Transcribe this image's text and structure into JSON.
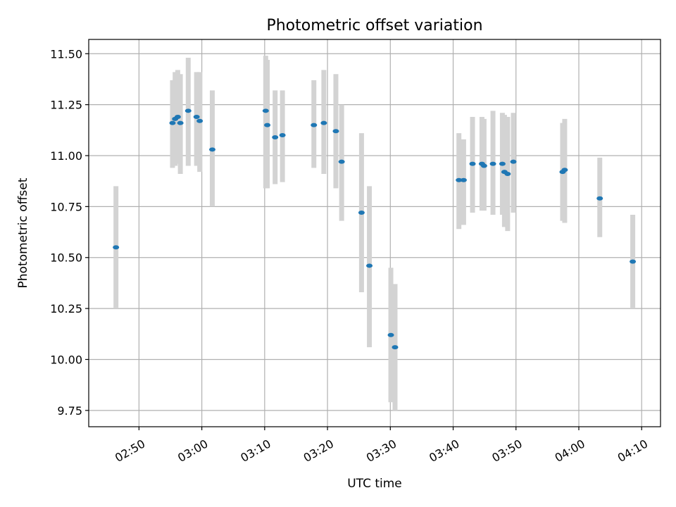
{
  "chart_data": {
    "type": "scatter",
    "title": "Photometric offset variation",
    "xlabel": "UTC time",
    "ylabel": "Photometric offset",
    "xlim": [
      "02:42",
      "04:13"
    ],
    "ylim": [
      9.67,
      11.57
    ],
    "x_ticks": [
      "02:50",
      "03:00",
      "03:10",
      "03:20",
      "03:30",
      "03:40",
      "03:50",
      "04:00",
      "04:10"
    ],
    "y_ticks": [
      "9.75",
      "10.00",
      "10.25",
      "10.50",
      "10.75",
      "11.00",
      "11.25",
      "11.50"
    ],
    "grid": true,
    "colors": {
      "point": "#1f77b4",
      "errorbar": "#d3d3d3",
      "grid": "#b0b0b0"
    },
    "points": [
      {
        "x": "02:46:20",
        "y": 10.55,
        "lo": 10.25,
        "hi": 10.85
      },
      {
        "x": "02:55:20",
        "y": 11.16,
        "lo": 10.94,
        "hi": 11.37
      },
      {
        "x": "02:55:45",
        "y": 11.18,
        "lo": 10.95,
        "hi": 11.41
      },
      {
        "x": "02:56:10",
        "y": 11.19,
        "lo": 10.96,
        "hi": 11.42
      },
      {
        "x": "02:56:35",
        "y": 11.16,
        "lo": 10.91,
        "hi": 11.4
      },
      {
        "x": "02:57:50",
        "y": 11.22,
        "lo": 10.95,
        "hi": 11.48
      },
      {
        "x": "02:59:10",
        "y": 11.19,
        "lo": 10.95,
        "hi": 11.41
      },
      {
        "x": "02:59:40",
        "y": 11.17,
        "lo": 10.92,
        "hi": 11.41
      },
      {
        "x": "03:01:40",
        "y": 11.03,
        "lo": 10.75,
        "hi": 11.32
      },
      {
        "x": "03:10:10",
        "y": 11.22,
        "lo": 10.84,
        "hi": 11.49
      },
      {
        "x": "03:10:25",
        "y": 11.15,
        "lo": 10.84,
        "hi": 11.47
      },
      {
        "x": "03:11:40",
        "y": 11.09,
        "lo": 10.86,
        "hi": 11.32
      },
      {
        "x": "03:12:50",
        "y": 11.1,
        "lo": 10.87,
        "hi": 11.32
      },
      {
        "x": "03:17:50",
        "y": 11.15,
        "lo": 10.94,
        "hi": 11.37
      },
      {
        "x": "03:19:25",
        "y": 11.16,
        "lo": 10.91,
        "hi": 11.42
      },
      {
        "x": "03:21:20",
        "y": 11.12,
        "lo": 10.84,
        "hi": 11.4
      },
      {
        "x": "03:22:15",
        "y": 10.97,
        "lo": 10.68,
        "hi": 11.25
      },
      {
        "x": "03:25:25",
        "y": 10.72,
        "lo": 10.33,
        "hi": 11.11
      },
      {
        "x": "03:26:40",
        "y": 10.46,
        "lo": 10.06,
        "hi": 10.85
      },
      {
        "x": "03:30:05",
        "y": 10.12,
        "lo": 9.79,
        "hi": 10.45
      },
      {
        "x": "03:30:45",
        "y": 10.06,
        "lo": 9.75,
        "hi": 10.37
      },
      {
        "x": "03:40:55",
        "y": 10.88,
        "lo": 10.64,
        "hi": 11.11
      },
      {
        "x": "03:41:40",
        "y": 10.88,
        "lo": 10.66,
        "hi": 11.08
      },
      {
        "x": "03:43:05",
        "y": 10.96,
        "lo": 10.72,
        "hi": 11.19
      },
      {
        "x": "03:44:35",
        "y": 10.96,
        "lo": 10.73,
        "hi": 11.19
      },
      {
        "x": "03:44:55",
        "y": 10.95,
        "lo": 10.73,
        "hi": 11.18
      },
      {
        "x": "03:46:20",
        "y": 10.96,
        "lo": 10.71,
        "hi": 11.22
      },
      {
        "x": "03:47:50",
        "y": 10.96,
        "lo": 10.71,
        "hi": 11.21
      },
      {
        "x": "03:48:10",
        "y": 10.92,
        "lo": 10.65,
        "hi": 11.2
      },
      {
        "x": "03:48:40",
        "y": 10.91,
        "lo": 10.63,
        "hi": 11.19
      },
      {
        "x": "03:49:35",
        "y": 10.97,
        "lo": 10.72,
        "hi": 11.21
      },
      {
        "x": "03:57:25",
        "y": 10.92,
        "lo": 10.68,
        "hi": 11.16
      },
      {
        "x": "03:57:45",
        "y": 10.93,
        "lo": 10.67,
        "hi": 11.18
      },
      {
        "x": "04:03:20",
        "y": 10.79,
        "lo": 10.6,
        "hi": 10.99
      },
      {
        "x": "04:08:35",
        "y": 10.48,
        "lo": 10.25,
        "hi": 10.71
      }
    ]
  }
}
